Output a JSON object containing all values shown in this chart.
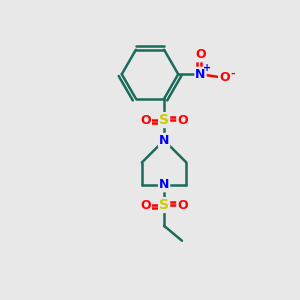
{
  "bg_color": "#e8e8e8",
  "atom_colors": {
    "C": "#1a6b5a",
    "N": "#0000ff",
    "O": "#ff0000",
    "S": "#cccc00"
  },
  "bond_color": "#1a6b5a",
  "figsize": [
    3.0,
    3.0
  ],
  "dpi": 100,
  "xlim": [
    0,
    10
  ],
  "ylim": [
    0,
    10
  ]
}
